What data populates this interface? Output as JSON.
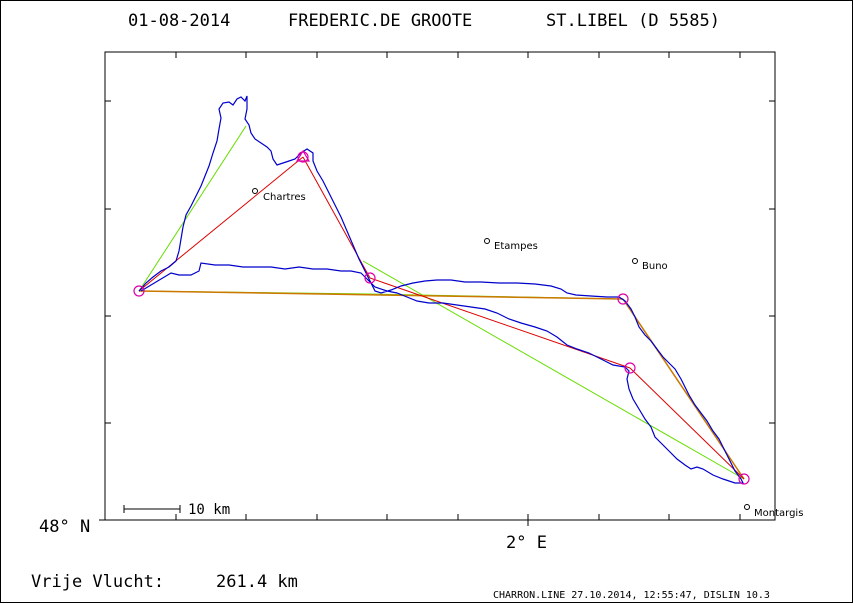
{
  "header": {
    "date": "01-08-2014",
    "pilot": "FREDERIC.DE GROOTE",
    "glider": "ST.LIBEL (D 5585)"
  },
  "map": {
    "lat_label": "48° N",
    "lon_label": "2° E",
    "scale_bar_label": "10 km",
    "cities": [
      {
        "name": "Chartres"
      },
      {
        "name": "Etampes"
      },
      {
        "name": "Buno"
      },
      {
        "name": "Montargis"
      }
    ]
  },
  "footer": {
    "result_label": "Vrije Vlucht:",
    "distance": "261.4 km",
    "credits": "CHARRON.LINE 27.10.2014, 12:55:47, DISLIN 10.3"
  },
  "colors": {
    "track": "#0000cc",
    "task_line": "#dd0000",
    "sector_line": "#66dd00",
    "leg_line": "#cc7700",
    "turnpoint": "#dd00aa",
    "frame": "#000000"
  }
}
